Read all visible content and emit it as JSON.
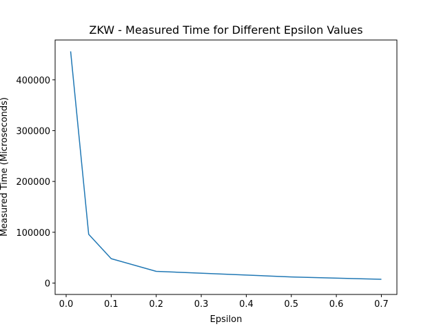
{
  "chart_data": {
    "type": "line",
    "title": "ZKW - Measured Time for Different Epsilon Values",
    "xlabel": "Epsilon",
    "ylabel": "Measured Time (Microseconds)",
    "x": [
      0.01,
      0.05,
      0.1,
      0.2,
      0.5,
      0.7
    ],
    "series": [
      {
        "values": [
          456000,
          96000,
          48000,
          23000,
          12000,
          7500
        ],
        "color": "#1f77b4"
      }
    ],
    "xlim": [
      -0.0245,
      0.7345
    ],
    "ylim": [
      -22425,
      478425
    ],
    "xticks": [
      0.0,
      0.1,
      0.2,
      0.3,
      0.4,
      0.5,
      0.6,
      0.7
    ],
    "xtick_labels": [
      "0.0",
      "0.1",
      "0.2",
      "0.3",
      "0.4",
      "0.5",
      "0.6",
      "0.7"
    ],
    "yticks": [
      0,
      100000,
      200000,
      300000,
      400000
    ],
    "ytick_labels": [
      "0",
      "100000",
      "200000",
      "300000",
      "400000"
    ],
    "grid": false,
    "legend": "none"
  }
}
